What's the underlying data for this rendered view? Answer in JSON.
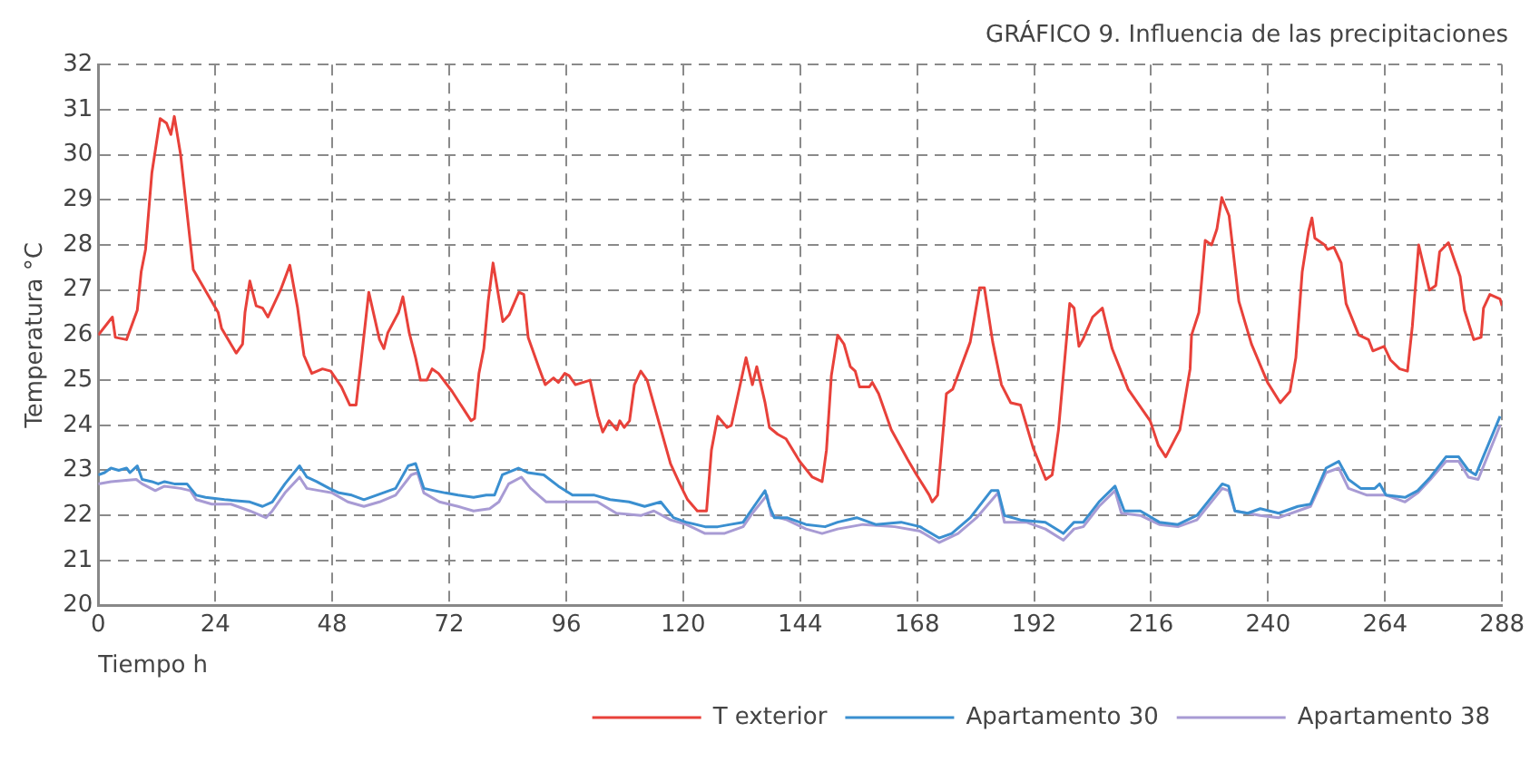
{
  "chart_data": {
    "type": "line",
    "title": "GRÁFICO 9. Influencia de las precipitaciones",
    "xlabel": "Tiempo h",
    "ylabel": "Temperatura °C",
    "xlim": [
      0,
      288
    ],
    "xticks": [
      0,
      24,
      48,
      72,
      96,
      120,
      144,
      168,
      192,
      216,
      240,
      264,
      288
    ],
    "ylim": [
      20,
      32
    ],
    "yticks": [
      20,
      21,
      22,
      23,
      24,
      25,
      26,
      27,
      28,
      29,
      30,
      31,
      32
    ],
    "grid": true,
    "legend": "bottom right",
    "marker": "none",
    "line_style": "solid",
    "series": [
      {
        "name": "T exterior",
        "color": "#e8413a",
        "x": [
          0,
          2.9,
          3.5,
          5.8,
          8,
          8.8,
          9.7,
          11,
          12.7,
          14,
          14.9,
          15.6,
          16.9,
          19.5,
          24.6,
          25.3,
          28.3,
          29.6,
          30.1,
          31.1,
          32.4,
          33.7,
          34.8,
          37.4,
          39.3,
          40.9,
          42.2,
          43.8,
          46,
          47.7,
          49.9,
          51.6,
          52.9,
          54,
          55.5,
          57.7,
          58.6,
          59.4,
          61.6,
          62.5,
          63.8,
          65.1,
          66.1,
          67.4,
          68.5,
          69.8,
          72.6,
          75,
          76.5,
          77.2,
          78.1,
          79.1,
          80,
          81,
          83,
          84.3,
          86.3,
          87.3,
          88.2,
          90.5,
          91.7,
          93.4,
          94.4,
          95.7,
          96.6,
          97.9,
          100.9,
          102.5,
          103.5,
          104.8,
          106.4,
          107,
          107.9,
          109,
          110,
          111.3,
          112.6,
          117.4,
          119.3,
          120.9,
          122.9,
          124.8,
          125.8,
          127.1,
          129,
          129.9,
          132.9,
          134.2,
          135.1,
          136.8,
          137.7,
          139.4,
          141.1,
          143.9,
          146.5,
          148.5,
          149.4,
          150.4,
          151.7,
          153,
          154.3,
          155.3,
          156.2,
          158.2,
          158.8,
          160.1,
          162.7,
          166,
          167.9,
          170.5,
          171.1,
          172.2,
          174,
          175.3,
          178.9,
          180.8,
          181.8,
          183.5,
          185.3,
          187.2,
          189.2,
          191.8,
          194.4,
          195.7,
          197,
          199.3,
          200.2,
          201.2,
          202,
          204,
          206,
          208,
          211.3,
          215.8,
          217.5,
          219,
          221.9,
          224,
          224.3,
          225.8,
          227.1,
          228.4,
          229.5,
          230.5,
          232,
          234,
          236.6,
          239.9,
          242.5,
          244.5,
          245.7,
          247,
          248.3,
          249,
          249.6,
          251.6,
          252.2,
          253.5,
          255,
          256,
          258.6,
          260.6,
          261.5,
          263.8,
          265.1,
          267,
          268.6,
          269.6,
          270.9,
          273.1,
          274.4,
          275.2,
          277,
          279.4,
          280.3,
          282.2,
          283.7,
          284.2,
          285.5,
          287.6,
          288
        ],
        "values": [
          26.0,
          26.4,
          25.95,
          25.9,
          26.55,
          27.4,
          27.9,
          29.6,
          30.8,
          30.7,
          30.45,
          30.85,
          30.0,
          27.45,
          26.5,
          26.15,
          25.6,
          25.8,
          26.5,
          27.2,
          26.65,
          26.6,
          26.4,
          27.0,
          27.55,
          26.6,
          25.55,
          25.15,
          25.25,
          25.2,
          24.85,
          24.45,
          24.45,
          25.5,
          26.95,
          25.9,
          25.7,
          26.05,
          26.5,
          26.85,
          26.05,
          25.5,
          25.0,
          25.0,
          25.25,
          25.15,
          24.75,
          24.35,
          24.1,
          24.15,
          25.15,
          25.7,
          26.75,
          27.6,
          26.3,
          26.45,
          26.95,
          26.9,
          25.95,
          25.25,
          24.9,
          25.05,
          24.95,
          25.15,
          25.1,
          24.9,
          25.0,
          24.2,
          23.85,
          24.1,
          23.9,
          24.1,
          23.95,
          24.1,
          24.9,
          25.2,
          25.0,
          23.15,
          22.7,
          22.35,
          22.1,
          22.1,
          23.45,
          24.2,
          23.95,
          24.0,
          25.5,
          24.9,
          25.3,
          24.5,
          23.95,
          23.8,
          23.7,
          23.2,
          22.85,
          22.75,
          23.45,
          25.1,
          26.0,
          25.8,
          25.3,
          25.2,
          24.85,
          24.85,
          24.95,
          24.7,
          23.9,
          23.25,
          22.9,
          22.45,
          22.3,
          22.45,
          24.7,
          24.8,
          25.85,
          27.05,
          27.05,
          25.85,
          24.9,
          24.5,
          24.45,
          23.5,
          22.8,
          22.9,
          23.9,
          26.7,
          26.6,
          25.75,
          25.9,
          26.4,
          26.6,
          25.7,
          24.8,
          24.1,
          23.55,
          23.3,
          23.9,
          25.25,
          26.0,
          26.5,
          28.1,
          28.0,
          28.35,
          29.05,
          28.65,
          26.75,
          25.8,
          24.95,
          24.5,
          24.75,
          25.5,
          27.4,
          28.3,
          28.6,
          28.15,
          28.0,
          27.9,
          27.95,
          27.6,
          26.7,
          26.0,
          25.9,
          25.65,
          25.75,
          25.45,
          25.25,
          25.2,
          26.2,
          28.0,
          27.0,
          27.1,
          27.85,
          28.05,
          27.3,
          26.55,
          25.9,
          25.95,
          26.6,
          26.9,
          26.8,
          26.65
        ]
      },
      {
        "name": "Apartamento 30",
        "color": "#3a8fd0",
        "x": [
          0,
          1.3,
          2.6,
          4.2,
          5.8,
          6.5,
          8,
          9,
          11,
          12.3,
          13.6,
          15.6,
          18.2,
          20.1,
          22,
          25.9,
          31.1,
          33.7,
          35.7,
          38.3,
          41.3,
          42.8,
          44.8,
          47.4,
          49.4,
          52,
          54.5,
          57.1,
          61,
          63.6,
          65.1,
          66.8,
          68.9,
          71.2,
          73.8,
          77,
          79.6,
          81.3,
          82.9,
          86.2,
          88.1,
          91.4,
          94.4,
          97.3,
          101.8,
          105,
          108.9,
          112.1,
          115.4,
          118,
          120.6,
          124.5,
          127.1,
          129.7,
          132.3,
          134.2,
          136.8,
          137.7,
          138.7,
          141.3,
          145.2,
          149.1,
          151.7,
          155.6,
          159.5,
          164.7,
          168.6,
          172.5,
          175.1,
          178.9,
          183.2,
          184.6,
          185.9,
          189.2,
          194.3,
          198,
          200.2,
          202.1,
          205.3,
          208.6,
          210.5,
          213.8,
          217.7,
          221.5,
          225.4,
          230.6,
          231.9,
          233.2,
          235.8,
          238.4,
          242.2,
          246.1,
          248.7,
          251.9,
          254.5,
          256.5,
          259,
          261.9,
          262.9,
          264.2,
          268.1,
          270.7,
          273.3,
          276.5,
          279.1,
          281.1,
          282.6,
          287.6
        ],
        "values": [
          22.9,
          22.95,
          23.05,
          23.0,
          23.05,
          22.95,
          23.1,
          22.8,
          22.75,
          22.7,
          22.75,
          22.7,
          22.7,
          22.45,
          22.4,
          22.35,
          22.3,
          22.2,
          22.3,
          22.7,
          23.1,
          22.85,
          22.75,
          22.6,
          22.5,
          22.45,
          22.35,
          22.45,
          22.6,
          23.1,
          23.15,
          22.6,
          22.55,
          22.5,
          22.45,
          22.4,
          22.45,
          22.45,
          22.9,
          23.05,
          22.95,
          22.9,
          22.65,
          22.45,
          22.45,
          22.35,
          22.3,
          22.2,
          22.3,
          21.95,
          21.85,
          21.75,
          21.75,
          21.8,
          21.85,
          22.15,
          22.55,
          22.2,
          21.95,
          21.95,
          21.8,
          21.75,
          21.85,
          21.95,
          21.8,
          21.85,
          21.75,
          21.5,
          21.6,
          21.95,
          22.55,
          22.55,
          22.0,
          21.9,
          21.85,
          21.6,
          21.85,
          21.85,
          22.3,
          22.65,
          22.1,
          22.1,
          21.85,
          21.8,
          22.0,
          22.7,
          22.65,
          22.1,
          22.05,
          22.15,
          22.05,
          22.2,
          22.25,
          23.05,
          23.2,
          22.8,
          22.6,
          22.6,
          22.7,
          22.45,
          22.4,
          22.55,
          22.85,
          23.3,
          23.3,
          23.0,
          22.9,
          24.2
        ]
      },
      {
        "name": "Apartamento 38",
        "color": "#a89bd4",
        "x": [
          0,
          2.6,
          7.8,
          9,
          11.7,
          13.6,
          16.9,
          18.9,
          20.1,
          23.3,
          27.2,
          31.1,
          34.4,
          35.7,
          38.3,
          41.3,
          42.8,
          45.4,
          48,
          51.2,
          54.5,
          57.7,
          61,
          64.2,
          65.5,
          66.8,
          70,
          73.8,
          77,
          80.3,
          82.2,
          84.2,
          86.8,
          88.7,
          91.9,
          95.3,
          97.3,
          102.4,
          106.3,
          111.4,
          114,
          117.4,
          120.6,
          124.5,
          128.4,
          132.3,
          134.2,
          137.2,
          138.1,
          141.3,
          145.2,
          148.5,
          151.7,
          156.9,
          163.4,
          168.6,
          172.5,
          176.4,
          180.2,
          184.6,
          185.9,
          190.4,
          194.3,
          198,
          200.2,
          202.1,
          205.3,
          208.6,
          209.9,
          213.8,
          217.7,
          221.5,
          225.4,
          230.6,
          231.9,
          233.2,
          238.4,
          242.2,
          246.1,
          248.7,
          251.9,
          254.5,
          256.5,
          260.3,
          264.2,
          268.1,
          270.7,
          273.3,
          276.5,
          279.1,
          281.1,
          283.1,
          287.6
        ],
        "values": [
          22.7,
          22.75,
          22.8,
          22.7,
          22.55,
          22.65,
          22.6,
          22.55,
          22.35,
          22.25,
          22.25,
          22.1,
          21.95,
          22.1,
          22.5,
          22.85,
          22.6,
          22.55,
          22.5,
          22.3,
          22.2,
          22.3,
          22.45,
          22.9,
          22.95,
          22.5,
          22.3,
          22.2,
          22.1,
          22.15,
          22.3,
          22.7,
          22.85,
          22.6,
          22.3,
          22.3,
          22.3,
          22.3,
          22.05,
          22.0,
          22.1,
          21.9,
          21.8,
          21.6,
          21.6,
          21.75,
          22.05,
          22.45,
          22.0,
          21.9,
          21.7,
          21.6,
          21.7,
          21.8,
          21.75,
          21.65,
          21.4,
          21.6,
          21.95,
          22.5,
          21.85,
          21.85,
          21.7,
          21.45,
          21.7,
          21.75,
          22.2,
          22.55,
          22.05,
          22.0,
          21.8,
          21.75,
          21.9,
          22.6,
          22.55,
          22.1,
          22.0,
          21.95,
          22.1,
          22.2,
          22.95,
          23.05,
          22.6,
          22.45,
          22.45,
          22.3,
          22.5,
          22.8,
          23.2,
          23.2,
          22.85,
          22.8,
          24.0
        ]
      }
    ]
  }
}
